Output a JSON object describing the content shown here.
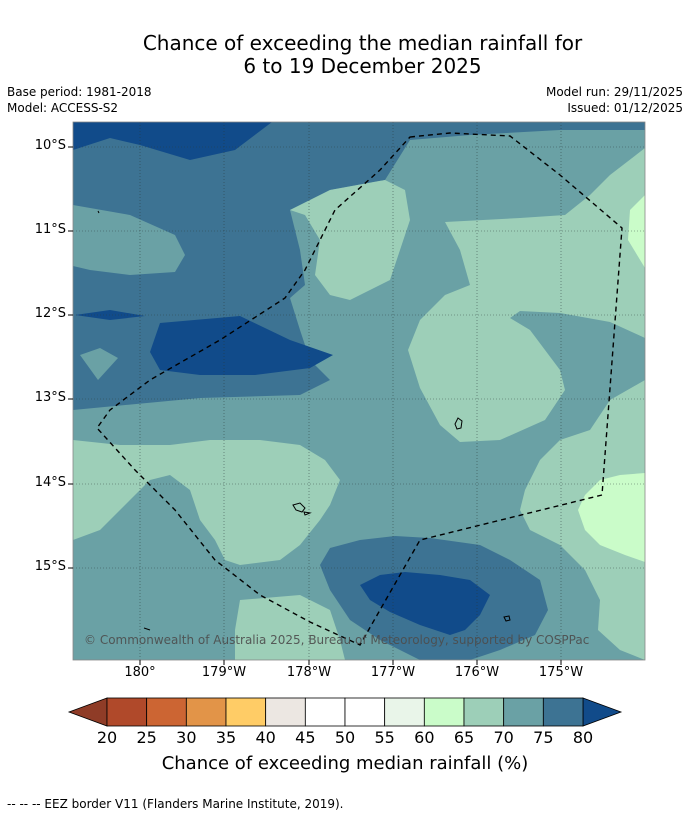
{
  "header": {
    "title_line1": "Chance of exceeding the median rainfall for",
    "title_line2": "6 to 19 December 2025",
    "base_period": "Base period: 1981-2018",
    "model": "Model: ACCESS-S2",
    "model_run": "Model run: 29/11/2025",
    "issued": "Issued: 01/12/2025"
  },
  "map": {
    "lat_labels": [
      "10°S",
      "11°S",
      "12°S",
      "13°S",
      "14°S",
      "15°S"
    ],
    "lon_labels": [
      "180°",
      "179°W",
      "178°W",
      "177°W",
      "176°W",
      "175°W"
    ],
    "copyright": "© Commonwealth of Australia 2025, Bureau of Meteorology, supported by COSPPac"
  },
  "colorbar": {
    "tick_labels": [
      "20",
      "25",
      "30",
      "35",
      "40",
      "45",
      "50",
      "55",
      "60",
      "65",
      "70",
      "75",
      "80"
    ],
    "colors": [
      "#b0492a",
      "#cc6533",
      "#e29448",
      "#ffcc66",
      "#ece7e2",
      "#ffffff",
      "#ffffff",
      "#e9f5e9",
      "#cafcc9",
      "#9dcfb8",
      "#6aa1a5",
      "#3d7393"
    ],
    "low_extend_color": "#8f3c27",
    "high_extend_color": "#114b8a",
    "label": "Chance of exceeding median rainfall (%)"
  },
  "footer": {
    "legend_text": "--  --  -- EEZ border V11 (Flanders Marine Institute, 2019)."
  }
}
